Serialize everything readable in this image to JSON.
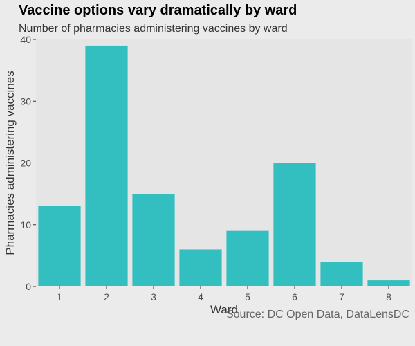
{
  "chart_data": {
    "type": "bar",
    "title": "Vaccine options vary dramatically by ward",
    "subtitle": "Number of pharmacies administering vaccines by ward",
    "xlabel": "Ward",
    "ylabel": "Pharmacies administering vaccines",
    "caption": "Source: DC Open Data, DataLensDC",
    "categories": [
      "1",
      "2",
      "3",
      "4",
      "5",
      "6",
      "7",
      "8"
    ],
    "values": [
      13,
      39,
      15,
      6,
      9,
      20,
      4,
      1
    ],
    "ylim": [
      0,
      40
    ],
    "yticks": [
      0,
      10,
      20,
      30,
      40
    ],
    "bar_color": "#33bfbf",
    "panel_color": "#e5e5e5",
    "background_color": "#ebebeb",
    "grid": false,
    "legend": "none"
  }
}
